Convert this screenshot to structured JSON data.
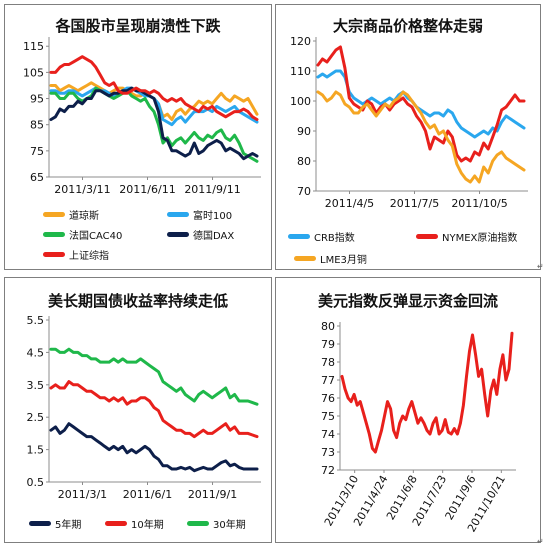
{
  "chart_data": [
    {
      "id": "p1",
      "type": "line",
      "title": "各国股市呈现崩溃性下跌",
      "xticks": [
        "2011/3/11",
        "2011/6/11",
        "2011/9/11"
      ],
      "yticks": [
        "65",
        "75",
        "85",
        "95",
        "105",
        "115"
      ],
      "ylim": [
        65,
        117
      ],
      "grid": false,
      "series": [
        {
          "name": "道琼斯",
          "color": "#f5a623",
          "values": [
            100,
            100,
            98,
            99,
            100,
            99,
            98,
            99,
            100,
            101,
            100,
            99,
            98,
            97,
            98,
            99,
            99,
            98,
            97,
            96,
            96,
            97,
            96,
            95,
            93,
            88,
            89,
            87,
            90,
            91,
            89,
            91,
            92,
            94,
            93,
            94,
            93,
            95,
            97,
            95,
            94,
            96,
            95,
            94,
            95,
            92,
            89
          ]
        },
        {
          "name": "富时100",
          "color": "#2aa7ee",
          "values": [
            98,
            98,
            97,
            97,
            98,
            98,
            97,
            96,
            97,
            98,
            99,
            98,
            98,
            97,
            96,
            97,
            98,
            99,
            99,
            98,
            97,
            96,
            96,
            95,
            93,
            87,
            86,
            85,
            87,
            88,
            86,
            88,
            90,
            90,
            90,
            91,
            90,
            92,
            91,
            90,
            91,
            92,
            90,
            89,
            88,
            87,
            86
          ]
        },
        {
          "name": "法国CAC40",
          "color": "#1fb84a",
          "values": [
            97,
            97,
            95,
            95,
            97,
            97,
            95,
            94,
            95,
            96,
            99,
            98,
            97,
            96,
            95,
            96,
            97,
            98,
            96,
            95,
            94,
            95,
            92,
            90,
            85,
            78,
            80,
            77,
            79,
            80,
            78,
            80,
            82,
            80,
            79,
            81,
            80,
            82,
            83,
            80,
            79,
            81,
            78,
            74,
            73,
            72,
            71
          ]
        },
        {
          "name": "德国DAX",
          "color": "#0d1f4a",
          "values": [
            87,
            88,
            91,
            90,
            92,
            92,
            94,
            93,
            95,
            95,
            98,
            98,
            97,
            96,
            97,
            97,
            98,
            98,
            99,
            98,
            98,
            97,
            96,
            95,
            90,
            80,
            79,
            75,
            75,
            74,
            73,
            74,
            78,
            74,
            75,
            77,
            78,
            79,
            78,
            75,
            76,
            75,
            74,
            72,
            73,
            74,
            73
          ]
        },
        {
          "name": "上证综指",
          "color": "#e8201c",
          "values": [
            105,
            105,
            107,
            108,
            108,
            109,
            110,
            111,
            110,
            109,
            107,
            104,
            101,
            100,
            101,
            98,
            97,
            97,
            98,
            99,
            98,
            98,
            97,
            98,
            97,
            95,
            94,
            95,
            94,
            95,
            93,
            92,
            91,
            90,
            92,
            91,
            92,
            90,
            89,
            88,
            89,
            90,
            90,
            91,
            90,
            88,
            87
          ]
        }
      ]
    },
    {
      "id": "p2",
      "type": "line",
      "title": "大宗商品价格整体走弱",
      "xticks": [
        "2011/4/5",
        "2011/7/5",
        "2011/10/5"
      ],
      "yticks": [
        "70",
        "80",
        "90",
        "100",
        "110",
        "120"
      ],
      "ylim": [
        70,
        120
      ],
      "grid": false,
      "series": [
        {
          "name": "CRB指数",
          "color": "#2aa7ee",
          "values": [
            108,
            109,
            108,
            109,
            110,
            110,
            108,
            103,
            101,
            100,
            99,
            100,
            101,
            100,
            99,
            100,
            101,
            100,
            102,
            103,
            101,
            100,
            98,
            97,
            96,
            95,
            96,
            96,
            95,
            97,
            96,
            93,
            91,
            90,
            89,
            88,
            89,
            90,
            89,
            91,
            90,
            93,
            95,
            94,
            93,
            92,
            91
          ]
        },
        {
          "name": "NYMEX原油指数",
          "color": "#e8201c",
          "values": [
            112,
            114,
            113,
            115,
            117,
            118,
            111,
            101,
            99,
            98,
            97,
            100,
            99,
            96,
            98,
            99,
            97,
            99,
            100,
            101,
            99,
            98,
            95,
            93,
            90,
            84,
            88,
            87,
            86,
            90,
            88,
            82,
            80,
            81,
            80,
            83,
            82,
            86,
            84,
            88,
            92,
            97,
            98,
            100,
            102,
            100,
            100
          ]
        },
        {
          "name": "LME3月铜",
          "color": "#f5a623",
          "values": [
            103,
            102,
            100,
            101,
            103,
            102,
            99,
            98,
            96,
            96,
            98,
            99,
            97,
            95,
            97,
            99,
            98,
            100,
            101,
            103,
            102,
            100,
            98,
            96,
            93,
            91,
            92,
            89,
            90,
            87,
            85,
            79,
            76,
            74,
            73,
            75,
            73,
            78,
            76,
            80,
            82,
            83,
            81,
            80,
            79,
            78,
            77
          ]
        }
      ]
    },
    {
      "id": "p3",
      "type": "line",
      "title": "美长期国债收益率持续走低",
      "xticks": [
        "2011/3/1",
        "2011/6/1",
        "2011/9/1"
      ],
      "yticks": [
        "0.5",
        "1.5",
        "2.5",
        "3.5",
        "4.5",
        "5.5"
      ],
      "ylim": [
        0.5,
        5.5
      ],
      "grid": false,
      "series": [
        {
          "name": "5年期",
          "color": "#0d1f4a",
          "values": [
            2.1,
            2.2,
            2.0,
            2.1,
            2.3,
            2.2,
            2.1,
            2.0,
            1.9,
            1.9,
            1.8,
            1.7,
            1.6,
            1.5,
            1.6,
            1.5,
            1.6,
            1.4,
            1.5,
            1.4,
            1.5,
            1.6,
            1.5,
            1.3,
            1.2,
            1.0,
            1.0,
            0.9,
            0.9,
            0.95,
            0.9,
            0.95,
            0.85,
            0.9,
            0.95,
            0.9,
            0.9,
            1.0,
            1.1,
            1.15,
            1.0,
            1.05,
            0.95,
            0.9,
            0.9,
            0.9,
            0.9
          ]
        },
        {
          "name": "10年期",
          "color": "#e8201c",
          "values": [
            3.4,
            3.5,
            3.4,
            3.4,
            3.6,
            3.5,
            3.5,
            3.4,
            3.3,
            3.3,
            3.2,
            3.1,
            3.1,
            3.0,
            3.1,
            3.0,
            3.1,
            2.9,
            3.0,
            3.0,
            3.1,
            3.1,
            3.0,
            2.8,
            2.7,
            2.4,
            2.3,
            2.2,
            2.1,
            2.1,
            2.0,
            2.0,
            1.9,
            2.0,
            2.1,
            2.0,
            2.0,
            2.1,
            2.2,
            2.3,
            2.1,
            2.2,
            2.0,
            2.0,
            2.0,
            1.95,
            1.9
          ]
        },
        {
          "name": "30年期",
          "color": "#1fb84a",
          "values": [
            4.6,
            4.6,
            4.5,
            4.5,
            4.6,
            4.5,
            4.5,
            4.4,
            4.4,
            4.3,
            4.3,
            4.2,
            4.2,
            4.2,
            4.3,
            4.2,
            4.3,
            4.2,
            4.2,
            4.2,
            4.3,
            4.2,
            4.1,
            4.0,
            3.9,
            3.6,
            3.5,
            3.4,
            3.3,
            3.4,
            3.2,
            3.1,
            3.0,
            3.2,
            3.3,
            3.2,
            3.1,
            3.2,
            3.3,
            3.4,
            3.1,
            3.2,
            3.0,
            3.0,
            3.0,
            2.95,
            2.9
          ]
        }
      ]
    },
    {
      "id": "p4",
      "type": "line",
      "title": "美元指数反弹显示资金回流",
      "xticks": [
        "2011/3/10",
        "2011/4/24",
        "2011/6/8",
        "2011/7/23",
        "2011/9/6",
        "2011/10/21"
      ],
      "yticks": [
        "72",
        "73",
        "74",
        "75",
        "76",
        "77",
        "78",
        "79",
        "80"
      ],
      "ylim": [
        72,
        80
      ],
      "grid": false,
      "series": [
        {
          "name": "",
          "color": "#e8201c",
          "values": [
            77.2,
            76.5,
            76.0,
            75.8,
            76.2,
            75.6,
            75.8,
            75.2,
            74.6,
            74.0,
            73.2,
            73.0,
            73.6,
            74.2,
            75.0,
            75.8,
            75.4,
            74.2,
            73.8,
            74.6,
            75.0,
            74.8,
            75.4,
            75.8,
            75.2,
            74.6,
            74.9,
            74.6,
            74.2,
            74.0,
            74.6,
            74.9,
            74.0,
            74.2,
            74.8,
            74.1,
            74.0,
            74.3,
            74.0,
            74.6,
            75.6,
            77.2,
            78.6,
            79.5,
            78.4,
            77.2,
            77.6,
            76.2,
            75.0,
            76.4,
            77.0,
            76.2,
            77.6,
            78.4,
            77.0,
            77.6,
            79.6
          ]
        }
      ]
    }
  ]
}
